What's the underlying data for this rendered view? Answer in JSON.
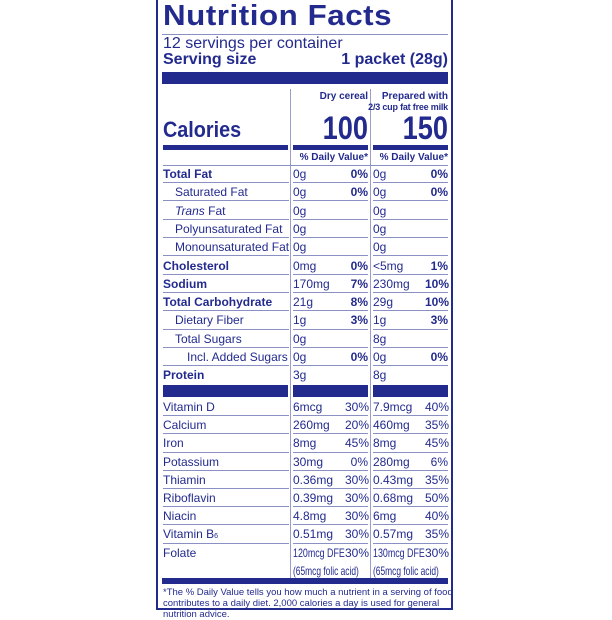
{
  "title": "Nutrition Facts",
  "servings_per_container": "12 servings per container",
  "serving_size_label": "Serving size",
  "serving_size_value": "1 packet (28g)",
  "columns": {
    "col1": "Dry cereal",
    "col2_line1": "Prepared with",
    "col2_line2": "2/3 cup fat free milk"
  },
  "calories": {
    "label": "Calories",
    "col1": "100",
    "col2": "150"
  },
  "daily_value_header": "% Daily Value*",
  "nutrients": [
    {
      "label": "Total Fat",
      "bold": true,
      "indent": 0,
      "c1": "0g",
      "p1": "0%",
      "c2": "0g",
      "p2": "0%"
    },
    {
      "label": "Saturated Fat",
      "indent": 1,
      "c1": "0g",
      "p1": "0%",
      "c2": "0g",
      "p2": "0%"
    },
    {
      "label": "Trans",
      "label_suffix": " Fat",
      "italic": true,
      "indent": 1,
      "c1": "0g",
      "p1": "",
      "c2": "0g",
      "p2": ""
    },
    {
      "label": "Polyunsaturated Fat",
      "indent": 1,
      "c1": "0g",
      "p1": "",
      "c2": "0g",
      "p2": ""
    },
    {
      "label": "Monounsaturated Fat",
      "indent": 1,
      "c1": "0g",
      "p1": "",
      "c2": "0g",
      "p2": ""
    },
    {
      "label": "Cholesterol",
      "bold": true,
      "indent": 0,
      "c1": "0mg",
      "p1": "0%",
      "c2": "<5mg",
      "p2": "1%"
    },
    {
      "label": "Sodium",
      "bold": true,
      "indent": 0,
      "c1": "170mg",
      "p1": "7%",
      "c2": "230mg",
      "p2": "10%"
    },
    {
      "label": "Total Carbohydrate",
      "bold": true,
      "indent": 0,
      "c1": "21g",
      "p1": "8%",
      "c2": "29g",
      "p2": "10%"
    },
    {
      "label": "Dietary Fiber",
      "indent": 1,
      "c1": "1g",
      "p1": "3%",
      "c2": "1g",
      "p2": "3%"
    },
    {
      "label": "Total Sugars",
      "indent": 1,
      "c1": "0g",
      "p1": "",
      "c2": "8g",
      "p2": ""
    },
    {
      "label": "Incl. Added Sugars",
      "indent": 2,
      "c1": "0g",
      "p1": "0%",
      "c2": "0g",
      "p2": "0%"
    },
    {
      "label": "Protein",
      "bold": true,
      "indent": 0,
      "c1": "3g",
      "p1": "",
      "c2": "8g",
      "p2": ""
    }
  ],
  "vitamins": [
    {
      "label": "Vitamin D",
      "c1": "6mcg",
      "p1": "30%",
      "c2": "7.9mcg",
      "p2": "40%"
    },
    {
      "label": "Calcium",
      "c1": "260mg",
      "p1": "20%",
      "c2": "460mg",
      "p2": "35%"
    },
    {
      "label": "Iron",
      "c1": "8mg",
      "p1": "45%",
      "c2": "8mg",
      "p2": "45%"
    },
    {
      "label": "Potassium",
      "c1": "30mg",
      "p1": "0%",
      "c2": "280mg",
      "p2": "6%"
    },
    {
      "label": "Thiamin",
      "c1": "0.36mg",
      "p1": "30%",
      "c2": "0.43mg",
      "p2": "35%"
    },
    {
      "label": "Riboflavin",
      "c1": "0.39mg",
      "p1": "30%",
      "c2": "0.68mg",
      "p2": "50%"
    },
    {
      "label": "Niacin",
      "c1": "4.8mg",
      "p1": "30%",
      "c2": "6mg",
      "p2": "40%"
    },
    {
      "label": "Vitamin B",
      "label_sub": "6",
      "c1": "0.51mg",
      "p1": "30%",
      "c2": "0.57mg",
      "p2": "35%"
    },
    {
      "label": "Folate",
      "c1": "120mcg DFE",
      "p1": "30%",
      "c2": "130mcg DFE",
      "p2": "30%",
      "c1_line2": "(65mcg folic acid)",
      "c2_line2": "(65mcg folic acid)"
    }
  ],
  "footnote": "*The % Daily Value tells you how much a nutrient in a serving of food contributes to a daily diet. 2,000 calories a day is used for general nutrition advice.",
  "colors": {
    "label_blue": "#232a8e"
  }
}
